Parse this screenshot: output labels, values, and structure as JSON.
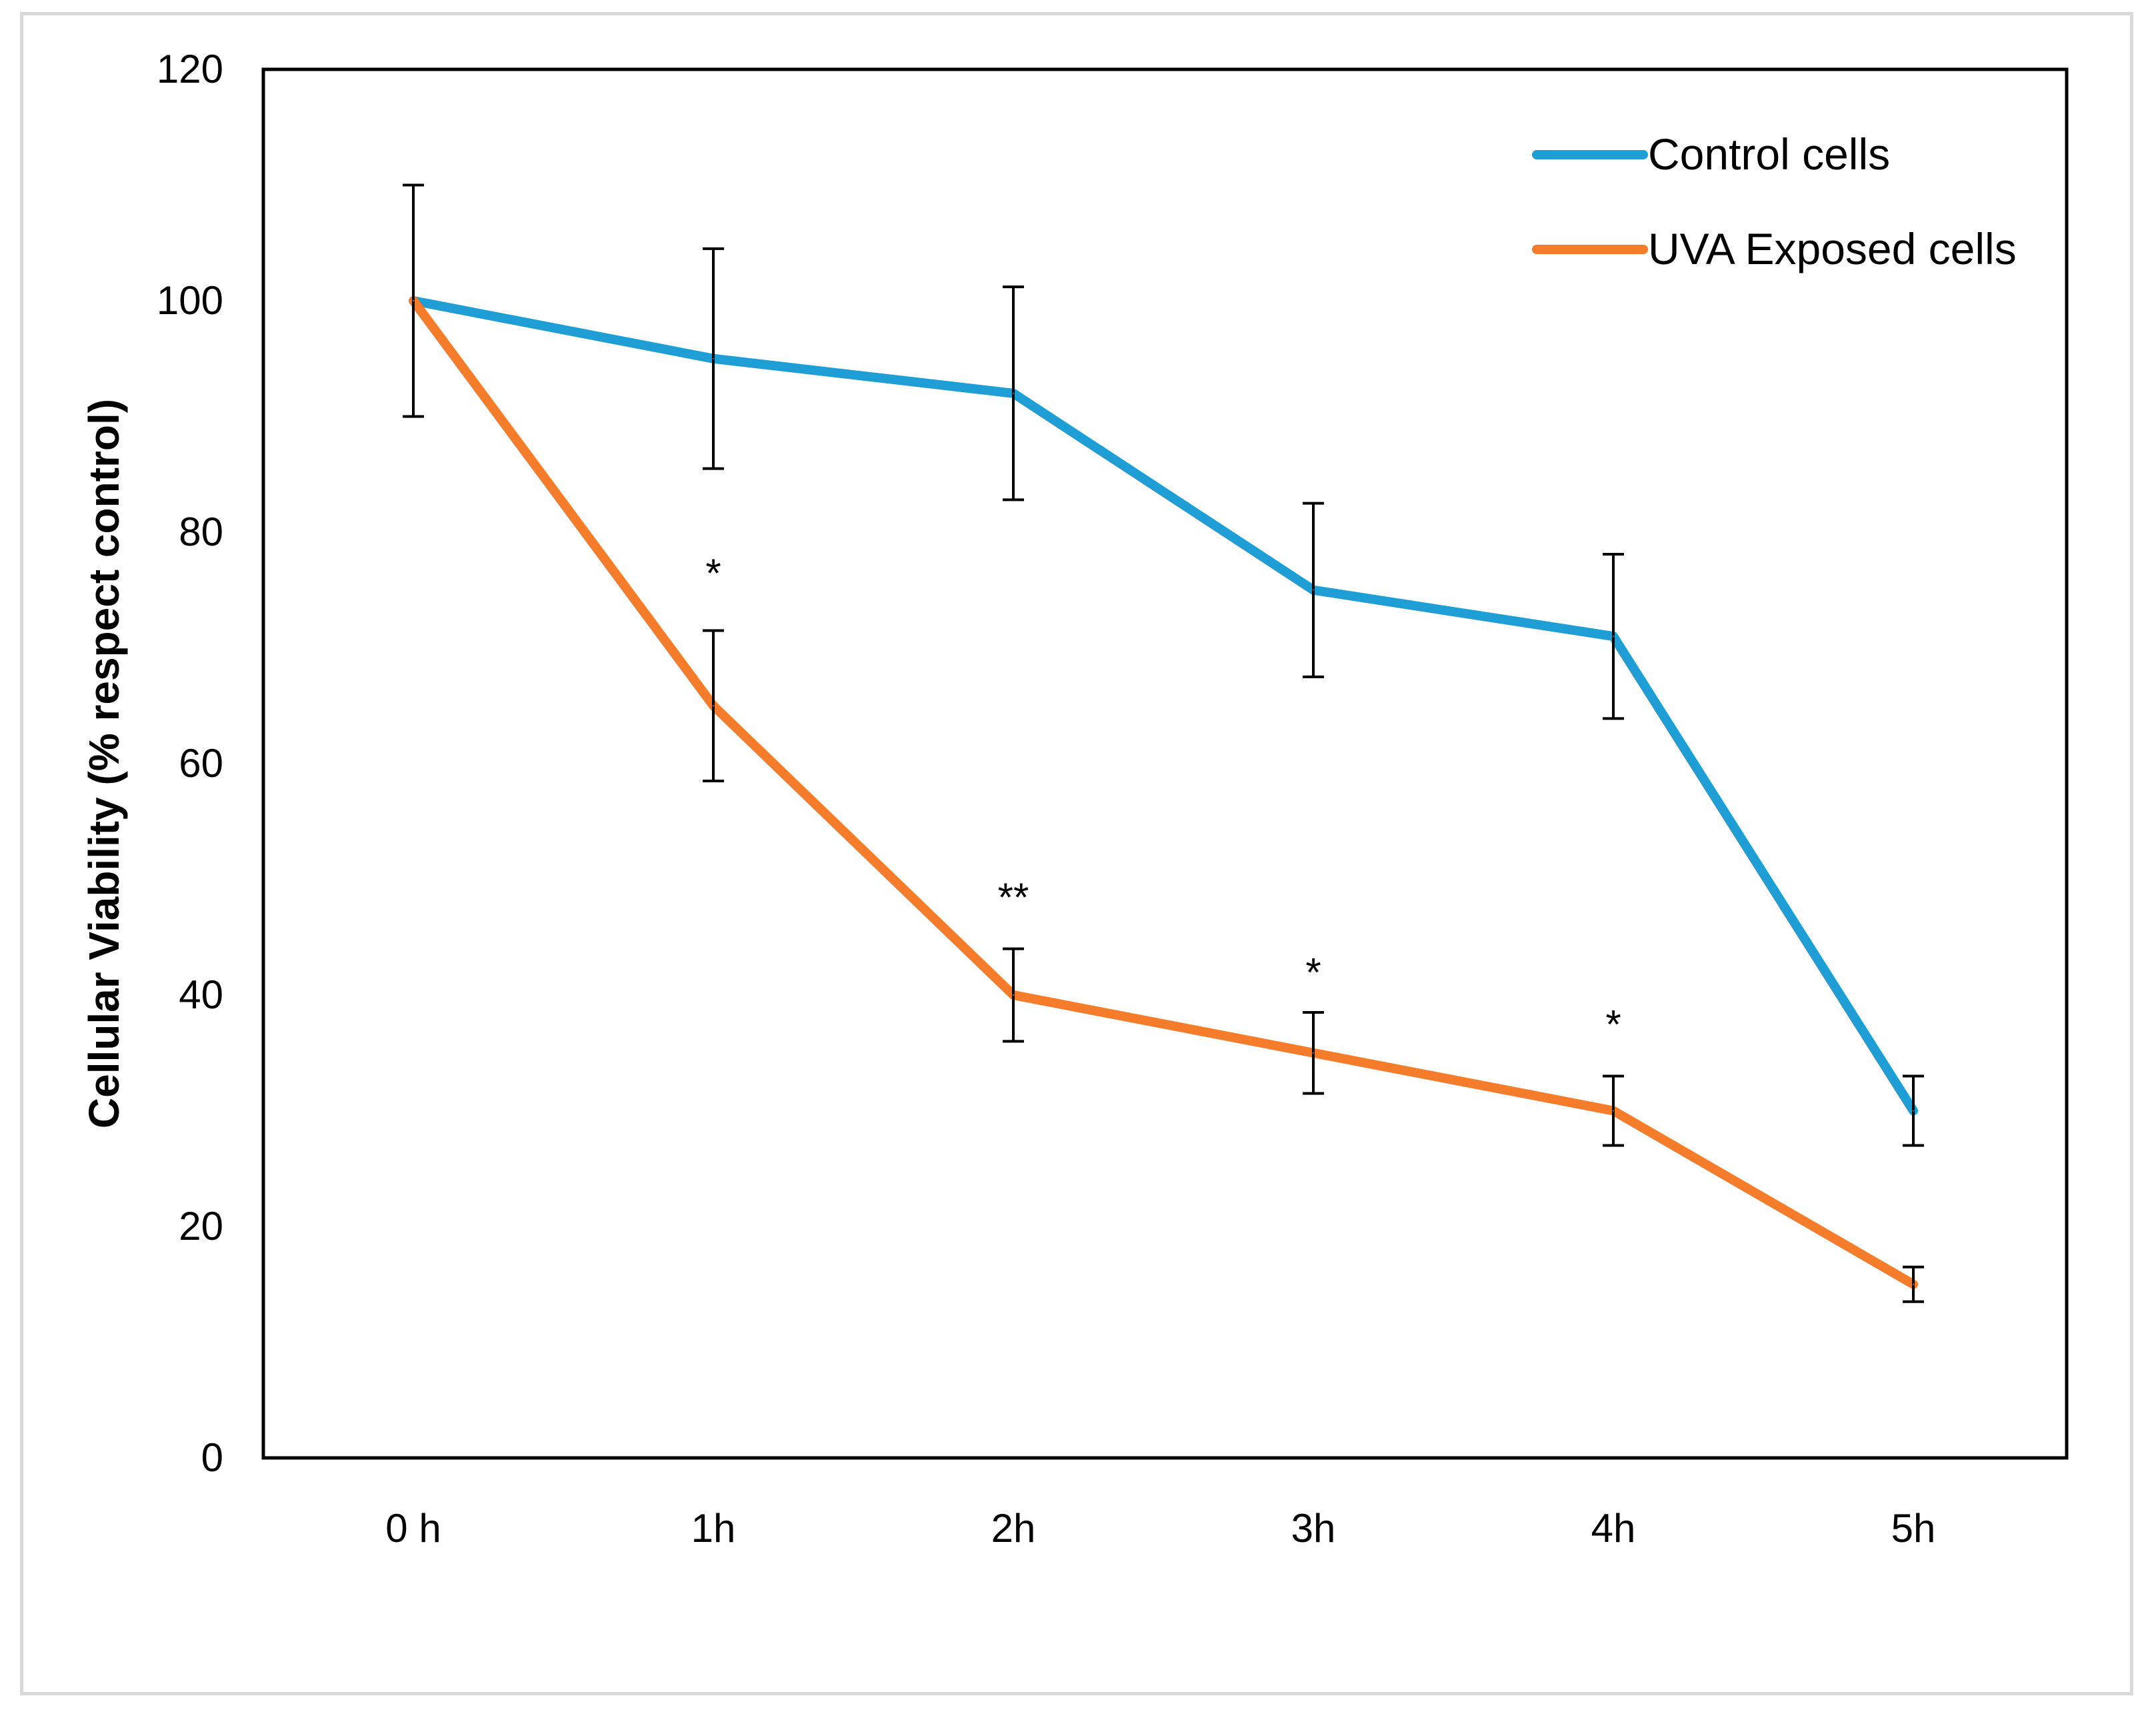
{
  "chart_data": {
    "type": "line",
    "title": "",
    "xlabel": "",
    "ylabel": "Cellular Viability (% respect control)",
    "categories": [
      "0 h",
      "1h",
      "2h",
      "3h",
      "4h",
      "5h"
    ],
    "ylim": [
      0,
      120
    ],
    "yticks": [
      0,
      20,
      40,
      60,
      80,
      100,
      120
    ],
    "grid": false,
    "legend_position": "top-right",
    "series": [
      {
        "name": "Control cells",
        "color": "#1f9ed6",
        "values": [
          100,
          95,
          92,
          75,
          71,
          30
        ],
        "errors": [
          10,
          9.5,
          9.2,
          7.5,
          7.1,
          3
        ]
      },
      {
        "name": "UVA Exposed cells",
        "color": "#f47c2a",
        "values": [
          100,
          65,
          40,
          35,
          30,
          15
        ],
        "errors": [
          10,
          6.5,
          4,
          3.5,
          3,
          1.5
        ]
      }
    ],
    "annotations": [
      {
        "category_index": 1,
        "text": "*",
        "y": 77
      },
      {
        "category_index": 2,
        "text": "**",
        "y": 49
      },
      {
        "category_index": 3,
        "text": "*",
        "y": 42.5
      },
      {
        "category_index": 4,
        "text": "*",
        "y": 38
      }
    ]
  }
}
